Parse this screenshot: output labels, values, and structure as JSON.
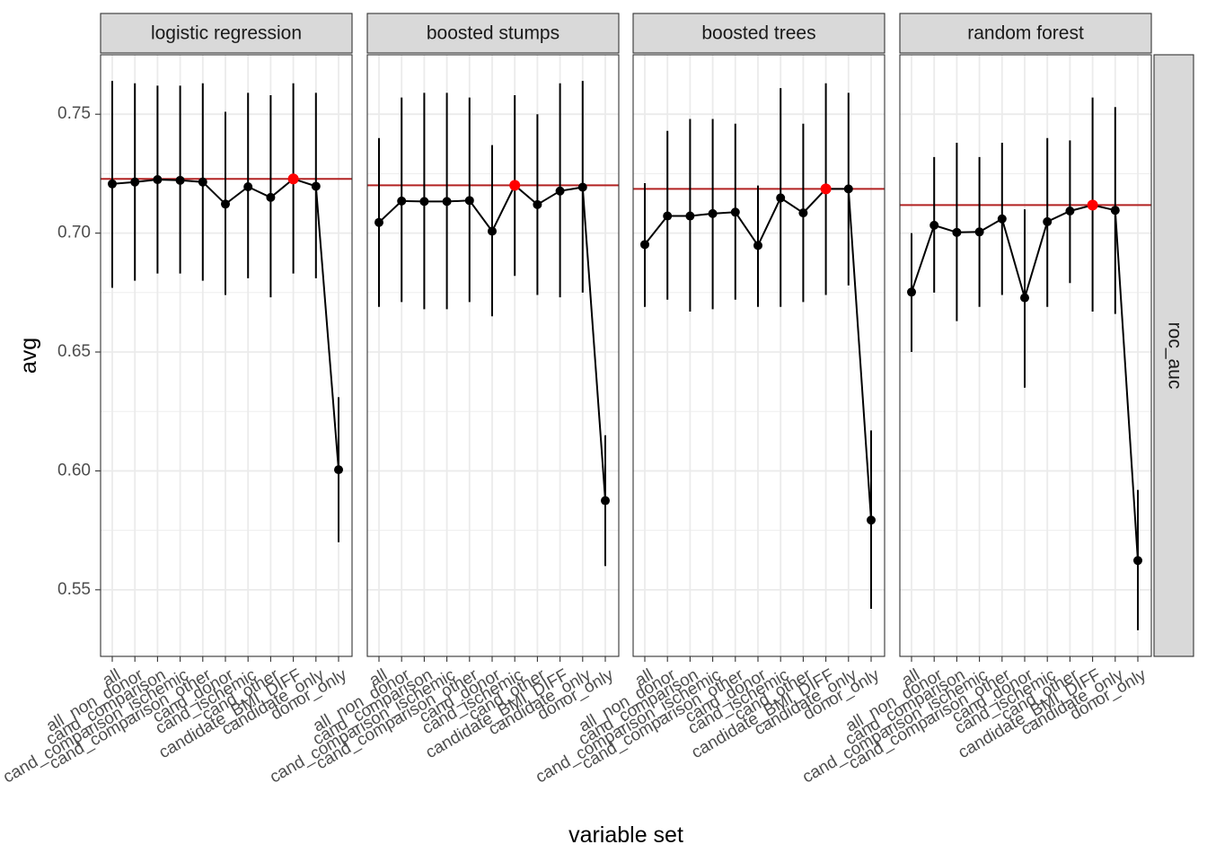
{
  "chart_data": {
    "type": "line",
    "xlabel": "variable set",
    "ylabel": "avg",
    "row_facet": "roc_auc",
    "ylim": [
      0.522,
      0.775
    ],
    "y_ticks": [
      0.55,
      0.6,
      0.65,
      0.7,
      0.75
    ],
    "y_tick_labels": [
      "0.55",
      "0.60",
      "0.65",
      "0.70",
      "0.75"
    ],
    "categories": [
      "all",
      "all_non_donor",
      "cand_comparison",
      "cand_comparison_ischemic",
      "cand_comparison_other",
      "cand_donor",
      "cand_ischemic",
      "cand_other",
      "candidate_BMI_DIFF",
      "candidate_only",
      "donor_only"
    ],
    "grid": true,
    "highlight_color": "#ff0000",
    "reference_line_color": "#b22222",
    "line_color": "#000000",
    "panels": [
      {
        "name": "logistic regression",
        "reference": 0.7228,
        "highlight_index": 8,
        "values": [
          0.7207,
          0.7215,
          0.7225,
          0.7222,
          0.7215,
          0.7122,
          0.7195,
          0.715,
          0.7228,
          0.7197,
          0.6005
        ],
        "lower": [
          0.677,
          0.68,
          0.683,
          0.683,
          0.68,
          0.674,
          0.681,
          0.673,
          0.683,
          0.681,
          0.57
        ],
        "upper": [
          0.764,
          0.763,
          0.762,
          0.762,
          0.763,
          0.751,
          0.759,
          0.758,
          0.763,
          0.759,
          0.631
        ]
      },
      {
        "name": "boosted stumps",
        "reference": 0.7201,
        "highlight_index": 6,
        "values": [
          0.7045,
          0.7135,
          0.7133,
          0.7133,
          0.7137,
          0.7008,
          0.7201,
          0.712,
          0.7177,
          0.7193,
          0.5875
        ],
        "lower": [
          0.669,
          0.671,
          0.668,
          0.668,
          0.671,
          0.665,
          0.682,
          0.674,
          0.673,
          0.675,
          0.56
        ],
        "upper": [
          0.74,
          0.757,
          0.759,
          0.759,
          0.757,
          0.737,
          0.758,
          0.75,
          0.763,
          0.764,
          0.615
        ]
      },
      {
        "name": "boosted trees",
        "reference": 0.7186,
        "highlight_index": 8,
        "values": [
          0.6952,
          0.7072,
          0.7072,
          0.7082,
          0.7088,
          0.6948,
          0.7148,
          0.7085,
          0.7186,
          0.7186,
          0.5793
        ],
        "lower": [
          0.669,
          0.672,
          0.667,
          0.668,
          0.672,
          0.669,
          0.669,
          0.671,
          0.674,
          0.678,
          0.542
        ],
        "upper": [
          0.721,
          0.743,
          0.748,
          0.748,
          0.746,
          0.72,
          0.761,
          0.746,
          0.763,
          0.759,
          0.617
        ]
      },
      {
        "name": "random forest",
        "reference": 0.7118,
        "highlight_index": 8,
        "values": [
          0.6752,
          0.7033,
          0.7003,
          0.7005,
          0.706,
          0.6728,
          0.7048,
          0.7093,
          0.7118,
          0.7096,
          0.5623
        ],
        "lower": [
          0.65,
          0.675,
          0.663,
          0.669,
          0.674,
          0.635,
          0.669,
          0.679,
          0.667,
          0.666,
          0.533
        ],
        "upper": [
          0.7,
          0.732,
          0.738,
          0.732,
          0.738,
          0.71,
          0.74,
          0.739,
          0.757,
          0.753,
          0.592
        ]
      }
    ]
  }
}
